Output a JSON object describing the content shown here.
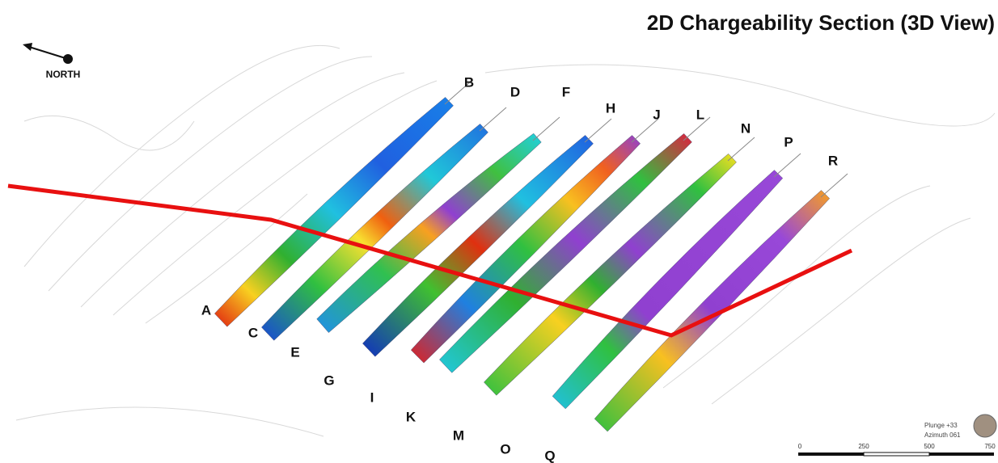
{
  "header": {
    "title": "2D Chargeability Section (3D View)"
  },
  "north_arrow": {
    "label": "NORTH"
  },
  "sections": {
    "labels": [
      "A",
      "B",
      "C",
      "D",
      "E",
      "F",
      "G",
      "H",
      "I",
      "J",
      "K",
      "L",
      "M",
      "N",
      "O",
      "P",
      "Q",
      "R"
    ]
  },
  "view_info": {
    "plunge": "Plunge +33",
    "azimuth": "Azimuth 061"
  },
  "scale_bar": {
    "labels": [
      "0",
      "250",
      "500",
      "750"
    ]
  }
}
